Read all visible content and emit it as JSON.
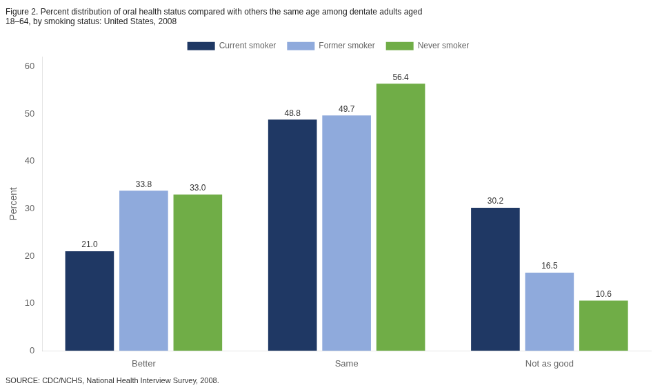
{
  "chart_data": {
    "type": "bar",
    "title": [
      "Figure 2. Percent distribution of oral health status compared with others the same age among dentate adults aged",
      "18–64, by smoking status: United States, 2008"
    ],
    "source": "SOURCE: CDC/NCHS, National Health Interview Survey, 2008.",
    "categories": [
      "Better",
      "Same",
      "Not as good"
    ],
    "series": [
      {
        "name": "Current smoker",
        "color": "#1f3864",
        "values": [
          21.0,
          48.8,
          30.2
        ],
        "value_labels": [
          "21.0",
          "48.8",
          "30.2"
        ]
      },
      {
        "name": "Former smoker",
        "color": "#8faadc",
        "values": [
          33.8,
          49.7,
          16.5
        ],
        "value_labels": [
          "33.8",
          "49.7",
          "16.5"
        ]
      },
      {
        "name": "Never smoker",
        "color": "#70ad47",
        "values": [
          33.0,
          56.4,
          10.6
        ],
        "value_labels": [
          "33.0",
          "56.4",
          "10.6"
        ]
      }
    ],
    "ylabel": "Percent",
    "ylim": [
      0,
      62
    ],
    "yticks": [
      0,
      10,
      20,
      30,
      40,
      50,
      60
    ],
    "grid": false,
    "legend": "top",
    "data_labels": true
  }
}
